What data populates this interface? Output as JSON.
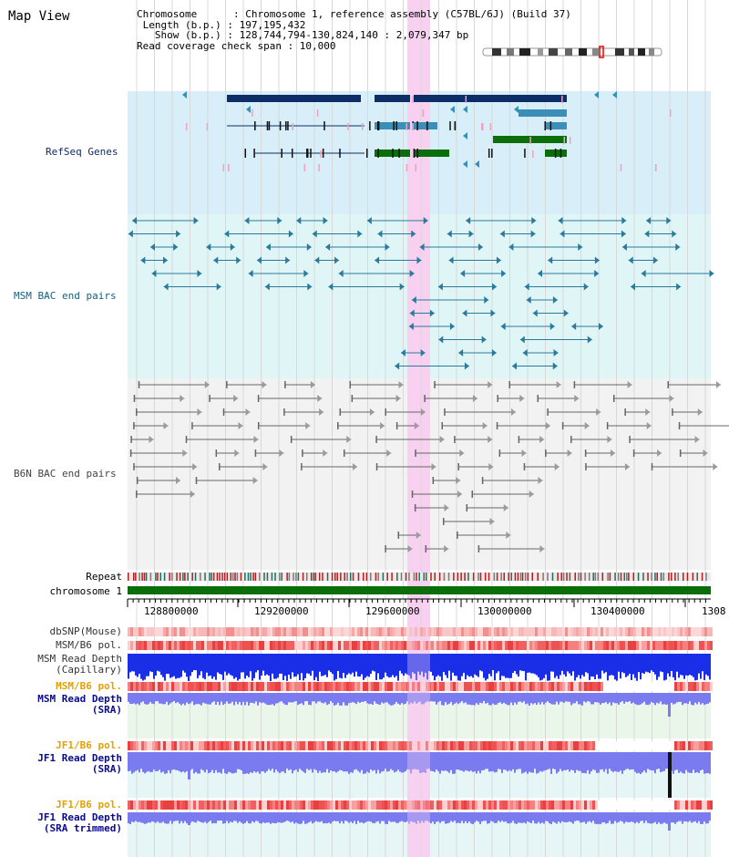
{
  "view_title": "Map View",
  "info": {
    "chromosome": "Chromosome      : Chromosome 1, reference assembly (C57BL/6J) (Build 37)",
    "length": " Length (b.p.) : 197,195,432",
    "show": "   Show (b.p.) : 128,744,794-130,824,140 : 2,079,347 bp",
    "coverage": "Read coverage check span : 10,000"
  },
  "tracks": {
    "refseq": "RefSeq Genes",
    "msm_bac": "MSM BAC end pairs",
    "b6n_bac": "B6N BAC end pairs",
    "repeat": "Repeat",
    "chromosome": "chromosome 1",
    "dbsnp": "dbSNP(Mouse)",
    "msm_b6_pol_1": "MSM/B6 pol.",
    "msm_read_depth_cap_1": "MSM Read Depth",
    "msm_read_depth_cap_2": "(Capillary)",
    "msm_b6_pol_2": "MSM/B6 pol.",
    "msm_read_depth_sra_1": "MSM Read Depth",
    "msm_read_depth_sra_2": "(SRA)",
    "jf1_b6_pol_1": "JF1/B6 pol.",
    "jf1_read_depth_sra_1": "JF1 Read Depth",
    "jf1_read_depth_sra_2": "(SRA)",
    "jf1_b6_pol_2": "JF1/B6 pol.",
    "jf1_read_depth_trim_1": "JF1 Read Depth",
    "jf1_read_depth_trim_2": "(SRA trimmed)"
  },
  "axis_ticks": [
    "128800000",
    "129200000",
    "129600000",
    "130000000",
    "130400000",
    "1308"
  ],
  "colors": {
    "refseq_bg": "#d8eef8",
    "msm_bg": "#e0f6f6",
    "b6n_bg": "#f2f2f2",
    "highlight": "#f8d0f0",
    "chromosome": "#0a6e0a",
    "gene_dark": "#0d2d66",
    "gene_mid": "#3a8fb8",
    "gene_green": "#0a6e0a",
    "msm_pair": "#2a7a9e",
    "b6n_pair": "#666666",
    "depth_blue": "#1a2ee8",
    "depth_light": "#7b7bf0",
    "label_blue": "#0a0a90",
    "label_orange": "#e6a000",
    "label_navy": "#102a6e"
  }
}
